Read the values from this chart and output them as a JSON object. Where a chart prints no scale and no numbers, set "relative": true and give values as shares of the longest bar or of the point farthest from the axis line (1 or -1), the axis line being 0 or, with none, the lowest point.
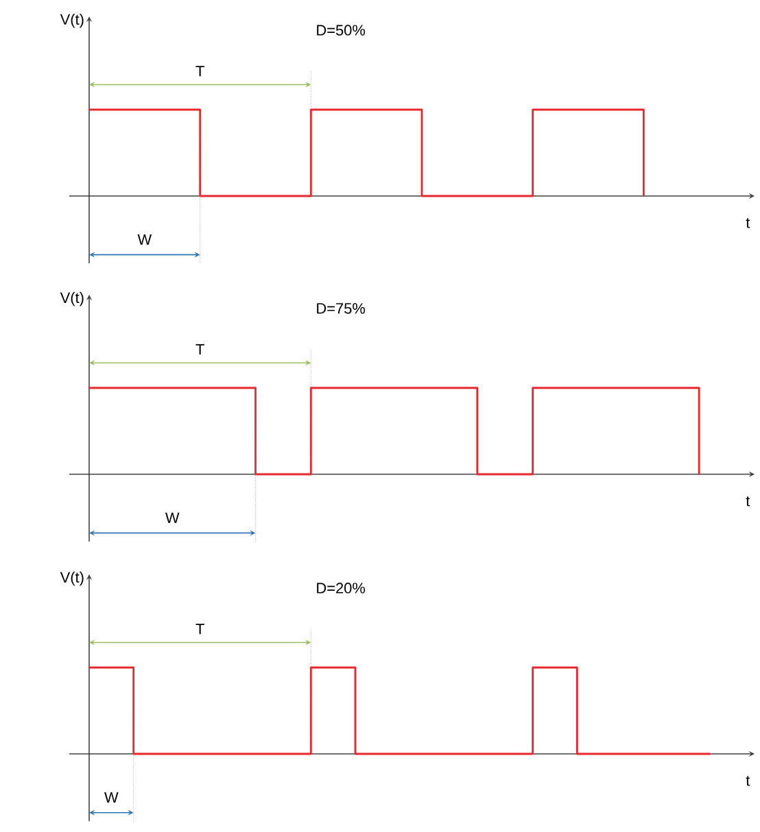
{
  "chart_data": [
    {
      "type": "step",
      "relative": true,
      "tick_labels": false,
      "xlabel": "t",
      "ylabel": "V(t)",
      "color": "#e8262b",
      "categories": [
        null,
        null,
        null,
        null,
        null,
        null
      ],
      "values": [
        1,
        0,
        1,
        0,
        1,
        0
      ],
      "annotations": [
        "T",
        "W",
        "D=50%"
      ]
    },
    {
      "type": "step",
      "relative": true,
      "tick_labels": false,
      "xlabel": "t",
      "ylabel": "V(t)",
      "color": "#e8262b",
      "categories": [
        null,
        null,
        null,
        null,
        null,
        null,
        null,
        null,
        null,
        null,
        null,
        null
      ],
      "values": [
        1,
        1,
        1,
        0,
        1,
        1,
        1,
        0,
        1,
        1,
        1,
        0
      ],
      "annotations": [
        "T",
        "W",
        "D=75%"
      ]
    },
    {
      "type": "step",
      "relative": true,
      "tick_labels": false,
      "xlabel": "t",
      "ylabel": "V(t)",
      "color": "#e8262b",
      "categories": [
        null,
        null,
        null,
        null,
        null,
        null,
        null,
        null,
        null,
        null,
        null,
        null,
        null,
        null,
        null
      ],
      "values": [
        1,
        0,
        0,
        0,
        0,
        1,
        0,
        0,
        0,
        0,
        1,
        0,
        0,
        0,
        0
      ],
      "annotations": [
        "T",
        "W",
        "D=20%"
      ]
    }
  ]
}
